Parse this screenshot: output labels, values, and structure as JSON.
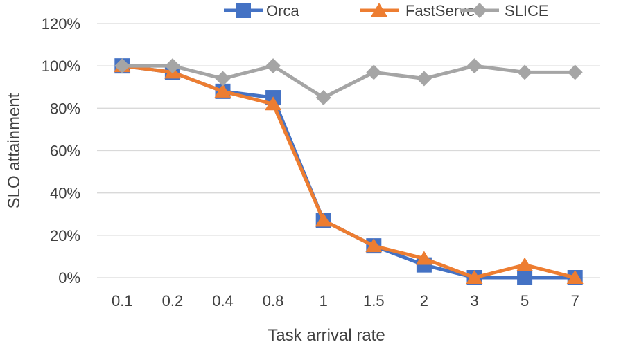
{
  "chart_data": {
    "type": "line",
    "title": "",
    "xlabel": "Task arrival rate",
    "ylabel": "SLO attainment",
    "categories": [
      "0.1",
      "0.2",
      "0.4",
      "0.8",
      "1",
      "1.5",
      "2",
      "3",
      "5",
      "7"
    ],
    "ylim": [
      0,
      120
    ],
    "yticks": [
      0,
      20,
      40,
      60,
      80,
      100,
      120
    ],
    "ytick_labels": [
      "0%",
      "20%",
      "40%",
      "60%",
      "80%",
      "100%",
      "120%"
    ],
    "grid": true,
    "legend": "top",
    "series": [
      {
        "name": "Orca",
        "marker": "square",
        "color": "#4472C4",
        "values": [
          100,
          97,
          88,
          85,
          27,
          15,
          6,
          0,
          0,
          0
        ]
      },
      {
        "name": "FastServe",
        "marker": "triangle",
        "color": "#ED7D31",
        "values": [
          100,
          97,
          88,
          82,
          27,
          15,
          9,
          0,
          6,
          0
        ]
      },
      {
        "name": "SLICE",
        "marker": "diamond",
        "color": "#A5A5A5",
        "values": [
          100,
          100,
          94,
          100,
          85,
          97,
          94,
          100,
          97,
          97
        ]
      }
    ]
  }
}
